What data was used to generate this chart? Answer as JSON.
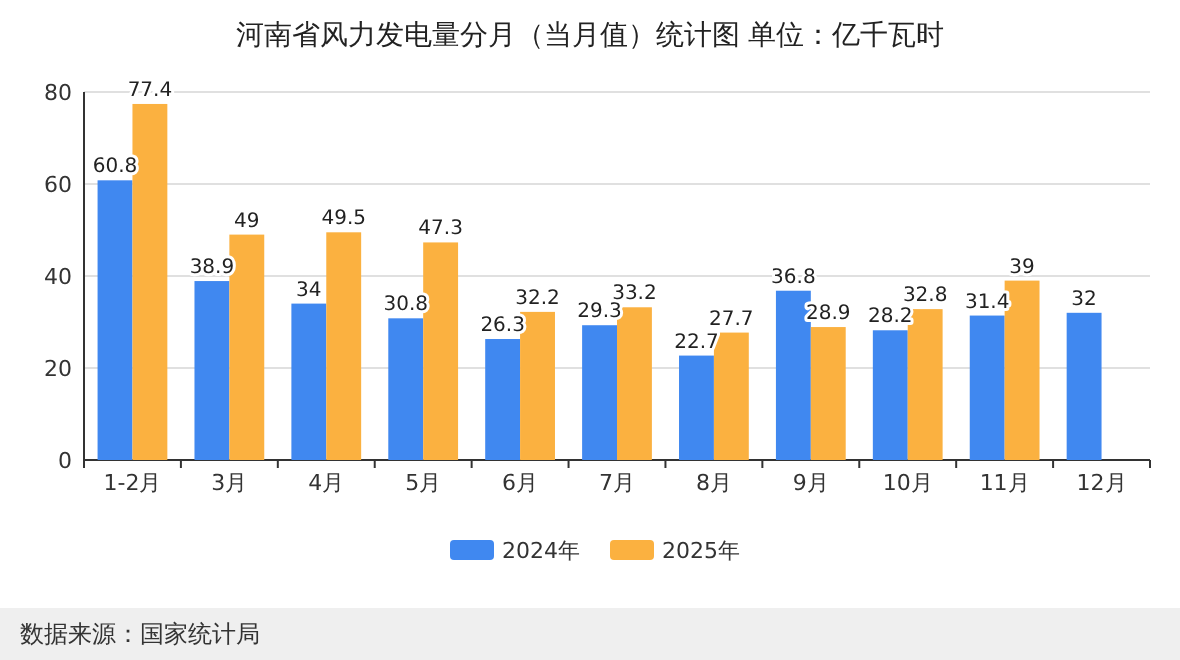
{
  "chart_data": {
    "type": "bar",
    "title": "河南省风力发电量分月（当月值）统计图 单位：亿千瓦时",
    "categories": [
      "1-2月",
      "3月",
      "4月",
      "5月",
      "6月",
      "7月",
      "8月",
      "9月",
      "10月",
      "11月",
      "12月"
    ],
    "series": [
      {
        "name": "2024年",
        "color": "#4088f0",
        "values": [
          60.8,
          38.9,
          34,
          30.8,
          26.3,
          29.3,
          22.7,
          36.8,
          28.2,
          31.4,
          32
        ]
      },
      {
        "name": "2025年",
        "color": "#fbb140",
        "values": [
          77.4,
          49,
          49.5,
          47.3,
          32.2,
          33.2,
          27.7,
          28.9,
          32.8,
          39,
          null
        ]
      }
    ],
    "ylim": [
      0,
      80
    ],
    "yticks": [
      0,
      20,
      40,
      60,
      80
    ],
    "grid": "y",
    "legend": "bottom",
    "data_labels": true,
    "annotations": [
      "数据来源：国家统计局"
    ]
  }
}
